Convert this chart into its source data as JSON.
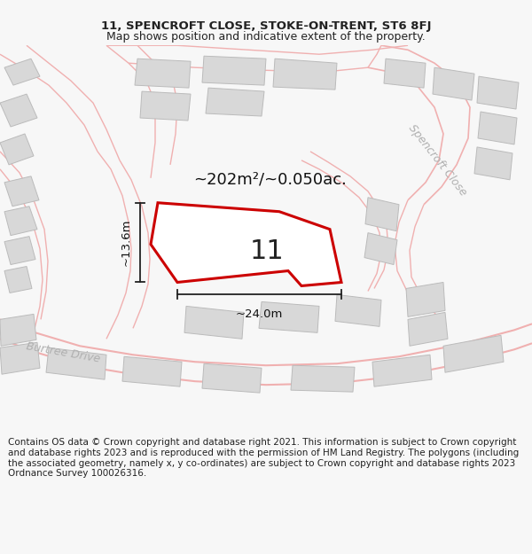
{
  "title": "11, SPENCROFT CLOSE, STOKE-ON-TRENT, ST6 8FJ",
  "subtitle": "Map shows position and indicative extent of the property.",
  "footer": "Contains OS data © Crown copyright and database right 2021. This information is subject to Crown copyright and database rights 2023 and is reproduced with the permission of HM Land Registry. The polygons (including the associated geometry, namely x, y co-ordinates) are subject to Crown copyright and database rights 2023 Ordnance Survey 100026316.",
  "bg_color": "#f7f7f7",
  "map_bg": "#ffffff",
  "road_color": "#f0b0b0",
  "road_lw": 1.0,
  "building_color": "#d8d8d8",
  "building_edge": "#bbbbbb",
  "building_lw": 0.7,
  "plot_color": "#ffffff",
  "plot_edge": "#cc0000",
  "plot_lw": 2.2,
  "street_label_color": "#b0b0b0",
  "dim_color": "#222222",
  "area_text": "~202m²/~0.050ac.",
  "area_fontsize": 13,
  "plot_number": "11",
  "plot_num_fontsize": 22,
  "dim_width": "~24.0m",
  "dim_height": "~13.6m",
  "street1": "Spencroft Close",
  "street2": "Burtree Drive",
  "street1_rotation": -52,
  "street2_rotation": -10,
  "title_fontsize": 9.5,
  "subtitle_fontsize": 9,
  "footer_fontsize": 7.5,
  "figsize": [
    6.0,
    6.25
  ],
  "dpi": 100,
  "map_xlim": [
    0,
    600
  ],
  "map_ylim": [
    0,
    440
  ]
}
